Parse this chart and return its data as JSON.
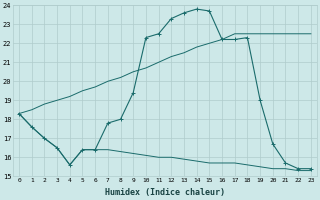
{
  "xlabel": "Humidex (Indice chaleur)",
  "bg_color": "#cde8e8",
  "grid_color": "#b0cccc",
  "line_color": "#1a6b6b",
  "xlim": [
    -0.5,
    23.5
  ],
  "ylim": [
    15,
    24
  ],
  "xticks": [
    0,
    1,
    2,
    3,
    4,
    5,
    6,
    7,
    8,
    9,
    10,
    11,
    12,
    13,
    14,
    15,
    16,
    17,
    18,
    19,
    20,
    21,
    22,
    23
  ],
  "yticks": [
    15,
    16,
    17,
    18,
    19,
    20,
    21,
    22,
    23,
    24
  ],
  "line1_x": [
    0,
    1,
    2,
    3,
    4,
    5,
    6,
    7,
    8,
    9,
    10,
    11,
    12,
    13,
    14,
    15,
    16,
    17,
    18,
    19,
    20,
    21,
    22,
    23
  ],
  "line1_y": [
    18.3,
    17.6,
    17.0,
    16.5,
    15.6,
    16.4,
    16.4,
    17.8,
    18.0,
    19.4,
    22.3,
    22.5,
    23.3,
    23.6,
    23.8,
    23.7,
    22.2,
    22.2,
    22.3,
    19.0,
    16.7,
    15.7,
    15.4,
    15.4
  ],
  "line2_x": [
    0,
    1,
    2,
    3,
    4,
    5,
    6,
    7,
    8,
    9,
    10,
    11,
    12,
    13,
    14,
    15,
    16,
    17,
    18,
    19,
    20,
    21,
    22,
    23
  ],
  "line2_y": [
    18.3,
    18.5,
    18.8,
    19.0,
    19.2,
    19.5,
    19.7,
    20.0,
    20.2,
    20.5,
    20.7,
    21.0,
    21.3,
    21.5,
    21.8,
    22.0,
    22.2,
    22.5,
    22.5,
    22.5,
    22.5,
    22.5,
    22.5,
    22.5
  ],
  "line3_x": [
    0,
    1,
    2,
    3,
    4,
    5,
    6,
    7,
    8,
    9,
    10,
    11,
    12,
    13,
    14,
    15,
    16,
    17,
    18,
    19,
    20,
    21,
    22,
    23
  ],
  "line3_y": [
    18.3,
    17.6,
    17.0,
    16.5,
    15.6,
    16.4,
    16.4,
    16.4,
    16.3,
    16.2,
    16.1,
    16.0,
    16.0,
    15.9,
    15.8,
    15.7,
    15.7,
    15.7,
    15.6,
    15.5,
    15.4,
    15.4,
    15.3,
    15.3
  ]
}
